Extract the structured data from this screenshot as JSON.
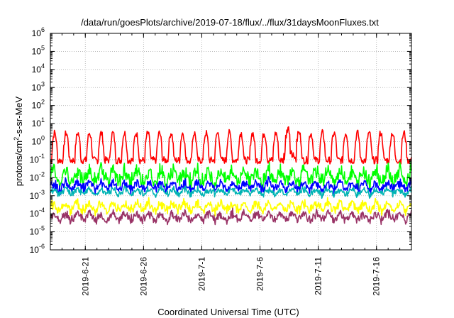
{
  "chart_data": {
    "type": "line",
    "title": "/data/run/goesPlots/archive/2019-07-18/flux/../flux/31daysMoonFluxes.txt",
    "xlabel": "Coordinated Universal Time (UTC)",
    "ylabel": {
      "prefix": "protons/cm",
      "sup": "2",
      "suffix": "-s-sr-MeV"
    },
    "yscale": "log",
    "ylim": [
      1e-06,
      1000000.0
    ],
    "xlim": [
      "2019-06-18",
      "2019-07-19"
    ],
    "xticks": [
      "2019-6-21",
      "2019-6-26",
      "2019-7-1",
      "2019-7-6",
      "2019-7-11",
      "2019-7-16"
    ],
    "ytick_labels": [
      {
        "base": "10",
        "exp": "-6"
      },
      {
        "base": "10",
        "exp": "-5"
      },
      {
        "base": "10",
        "exp": "-4"
      },
      {
        "base": "10",
        "exp": "-3"
      },
      {
        "base": "10",
        "exp": "-2"
      },
      {
        "base": "10",
        "exp": "-1"
      },
      {
        "base": "10",
        "exp": "0"
      },
      {
        "base": "10",
        "exp": "1"
      },
      {
        "base": "10",
        "exp": "2"
      },
      {
        "base": "10",
        "exp": "3"
      },
      {
        "base": "10",
        "exp": "4"
      },
      {
        "base": "10",
        "exp": "5"
      },
      {
        "base": "10",
        "exp": "6"
      }
    ],
    "grid": true,
    "series": [
      {
        "color": "#ff0000",
        "typical_low": 0.05,
        "typical_high": 3,
        "peak": 10,
        "periodic": true
      },
      {
        "color": "#00ff00",
        "typical_low": 0.003,
        "typical_high": 0.05
      },
      {
        "color": "#0000ff",
        "typical_low": 0.0015,
        "typical_high": 0.008
      },
      {
        "color": "#00b3b3",
        "typical_low": 0.0009,
        "typical_high": 0.003
      },
      {
        "color": "#ffff00",
        "typical_low": 0.0001,
        "typical_high": 0.0006
      },
      {
        "color": "#993366",
        "typical_low": 3e-05,
        "typical_high": 0.00015
      }
    ]
  }
}
